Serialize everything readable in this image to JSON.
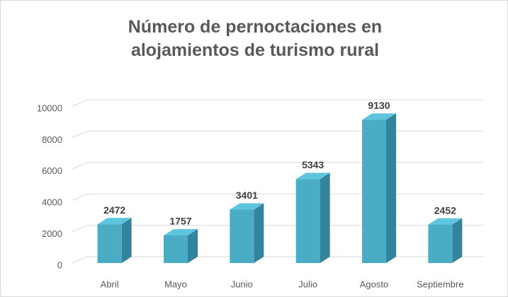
{
  "chart_data": {
    "type": "bar3d",
    "title": "Número de pernoctaciones en alojamientos de turismo rural",
    "categories": [
      "Abril",
      "Mayo",
      "Junio",
      "Julio",
      "Agosto",
      "Septiembre"
    ],
    "values": [
      2472,
      1757,
      3401,
      5343,
      9130,
      2452
    ],
    "color": "#4bacc6",
    "ylim": [
      0,
      10000
    ],
    "yticks": [
      0,
      2000,
      4000,
      6000,
      8000,
      10000
    ],
    "grid": true
  }
}
